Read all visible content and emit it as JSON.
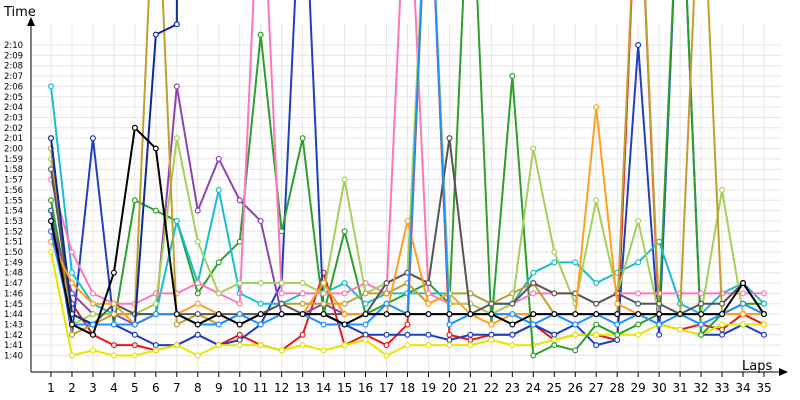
{
  "chart_data": {
    "type": "line",
    "title": "",
    "xlabel": "Laps",
    "ylabel": "Time",
    "x_ticks": [
      1,
      2,
      3,
      4,
      5,
      6,
      7,
      8,
      9,
      10,
      11,
      12,
      13,
      14,
      15,
      16,
      17,
      18,
      19,
      20,
      21,
      22,
      23,
      24,
      25,
      26,
      27,
      28,
      29,
      30,
      31,
      32,
      33,
      34,
      35
    ],
    "y_ticks": [
      "1:40",
      "1:41",
      "1:42",
      "1:43",
      "1:44",
      "1:45",
      "1:46",
      "1:47",
      "1:48",
      "1:49",
      "1:50",
      "1:51",
      "1:52",
      "1:53",
      "1:54",
      "1:55",
      "1:56",
      "1:57",
      "1:58",
      "1:59",
      "2:00",
      "2:01",
      "2:02",
      "2:03",
      "2:04",
      "2:05",
      "2:06",
      "2:07",
      "2:08",
      "2:09",
      "2:10"
    ],
    "xlim": [
      1,
      35
    ],
    "ylim_seconds": [
      99,
      132
    ],
    "grid": true,
    "legend": "none",
    "series": [
      {
        "color": "#e31a1c",
        "values": [
          112,
          105,
          102,
          101,
          101,
          100.5,
          101,
          102,
          101,
          102,
          101,
          100.5,
          102,
          108,
          101,
          102,
          101,
          103,
          150,
          102,
          101.5,
          102,
          102,
          103,
          101.5,
          102,
          102,
          101.5,
          150,
          103,
          102.5,
          103,
          102.5,
          104,
          103
        ]
      },
      {
        "color": "#1f3fbf",
        "values": [
          114,
          102,
          121,
          103,
          102,
          101,
          101,
          102,
          101,
          101.5,
          103,
          107,
          150,
          104,
          103,
          102,
          102,
          102,
          102,
          101.5,
          102,
          102,
          102,
          103,
          102,
          103,
          101,
          101.5,
          130,
          102,
          150,
          102,
          102,
          103,
          102
        ]
      },
      {
        "color": "#e6e600",
        "values": [
          110,
          100,
          100.5,
          100,
          100,
          100.5,
          101,
          100,
          101,
          101,
          101,
          100.5,
          101,
          100.5,
          101,
          101.5,
          100,
          101,
          101,
          101,
          101,
          101.5,
          101,
          101,
          101.5,
          102,
          102,
          102,
          102,
          103,
          102.5,
          102,
          103,
          103,
          103
        ]
      },
      {
        "color": "#2ca02c",
        "values": [
          115,
          104,
          103,
          103,
          115,
          114,
          113,
          106,
          109,
          111,
          131,
          112,
          121,
          104,
          112,
          104,
          105,
          106,
          107,
          105,
          150,
          103,
          127,
          100,
          101,
          100.5,
          103,
          102,
          103,
          104,
          150,
          102,
          104,
          105,
          105
        ]
      },
      {
        "color": "#8e44ad",
        "values": [
          113,
          106,
          104,
          104,
          103,
          104,
          126,
          114,
          119,
          115,
          113,
          104,
          104,
          105,
          104,
          104,
          104,
          104,
          104,
          104,
          104,
          104,
          104,
          104,
          104,
          104,
          104,
          104,
          104,
          104,
          104,
          104,
          104,
          104,
          104
        ]
      },
      {
        "color": "#17becf",
        "values": [
          126,
          108,
          105,
          104,
          104,
          104,
          113,
          107,
          116,
          106,
          105,
          105,
          106,
          106,
          107,
          105,
          106,
          106,
          106,
          106,
          106,
          105,
          105,
          108,
          109,
          109,
          107,
          108,
          109,
          111,
          105,
          104,
          106,
          107,
          105
        ]
      },
      {
        "color": "#ff77bb",
        "values": [
          117,
          110,
          106,
          105,
          105,
          106,
          106,
          107,
          106,
          105,
          150,
          106,
          106,
          106,
          106,
          107,
          106,
          150,
          106,
          105,
          105,
          104,
          105,
          106,
          106,
          106,
          105,
          106,
          106,
          106,
          106,
          106,
          106,
          106,
          106
        ]
      },
      {
        "color": "#a6cf5a",
        "values": [
          119,
          103,
          104,
          104,
          104,
          105,
          121,
          111,
          106,
          107,
          107,
          107,
          107,
          106,
          117,
          106,
          107,
          108,
          150,
          105,
          105,
          104,
          105,
          120,
          110,
          105,
          115,
          106,
          113,
          104,
          104,
          104,
          116,
          104,
          104
        ]
      },
      {
        "color": "#bf9f2f",
        "values": [
          120,
          102,
          103,
          104,
          104,
          150,
          103,
          104,
          103,
          104,
          104,
          105,
          105,
          105,
          105,
          106,
          106,
          107,
          105,
          106,
          106,
          105,
          106,
          107,
          104,
          104,
          104,
          104,
          150,
          104,
          104,
          150,
          104,
          105,
          104
        ]
      },
      {
        "color": "#555555",
        "values": [
          118,
          104,
          103,
          105,
          104,
          104,
          104,
          104,
          104,
          104,
          104,
          105,
          104,
          104,
          104,
          104,
          107,
          108,
          107,
          121,
          104,
          105,
          105,
          107,
          106,
          106,
          105,
          106,
          105,
          105,
          104,
          105,
          105,
          107,
          104
        ]
      },
      {
        "color": "#0d2a9a",
        "values": [
          121,
          104,
          103,
          103,
          103,
          131,
          132,
          999
        ]
      },
      {
        "color": "#ff9f1f",
        "values": [
          111,
          107,
          105,
          105,
          103,
          104,
          104,
          105,
          104,
          103,
          104,
          104,
          104,
          107,
          104,
          104,
          104,
          113,
          105,
          106,
          104,
          103,
          104,
          104,
          104,
          104,
          124,
          105,
          104,
          104,
          104,
          104,
          104,
          104,
          104
        ]
      },
      {
        "color": "#1e90ff",
        "values": [
          112,
          103,
          103,
          103,
          103,
          104,
          104,
          103,
          103,
          104,
          103,
          104,
          104,
          103,
          103,
          103,
          105,
          104,
          150,
          103,
          104,
          104,
          104,
          103,
          104,
          103,
          104,
          103,
          104,
          103,
          104,
          103,
          104,
          105,
          104
        ]
      },
      {
        "color": "#000000",
        "values": [
          113,
          103,
          102,
          108,
          122,
          120,
          104,
          103,
          104,
          103,
          104,
          104,
          104,
          104,
          103,
          104,
          104,
          104,
          104,
          104,
          104,
          104,
          103,
          104,
          104,
          104,
          104,
          104,
          104,
          104,
          104,
          104,
          104,
          107,
          104
        ]
      }
    ]
  }
}
